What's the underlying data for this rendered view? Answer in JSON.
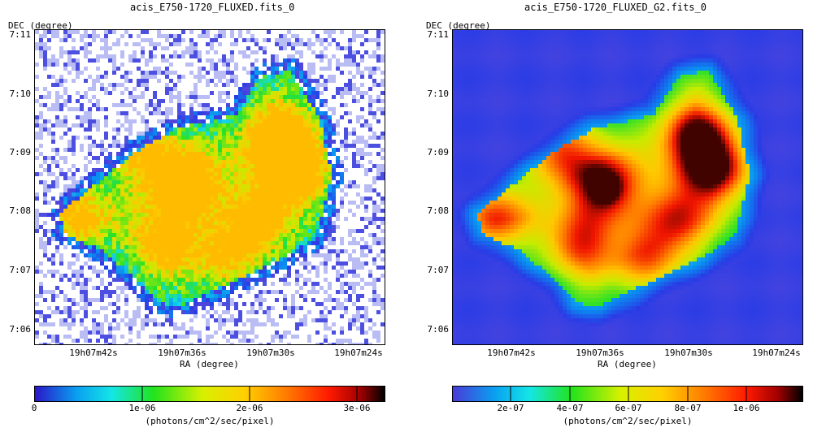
{
  "panels": [
    {
      "title": "acis_E750-1720_FLUXED.fits_0",
      "dec_axis_label": "DEC (degree)",
      "ra_axis_label": "RA (degree)",
      "dec_ticks": [
        "7:11",
        "7:10",
        "7:09",
        "7:08",
        "7:07",
        "7:06"
      ],
      "ra_ticks": [
        "19h07m42s",
        "19h07m36s",
        "19h07m30s",
        "19h07m24s"
      ],
      "colorbar_ticks": [
        "0",
        "1e-06",
        "2e-06",
        "3e-06"
      ],
      "colorbar_unit": "(photons/cm^2/sec/pixel)",
      "style": "noisy"
    },
    {
      "title": "acis_E750-1720_FLUXED_G2.fits_0",
      "dec_axis_label": "DEC (degree)",
      "ra_axis_label": "RA (degree)",
      "dec_ticks": [
        "7:11",
        "7:10",
        "7:09",
        "7:08",
        "7:07",
        "7:06"
      ],
      "ra_ticks": [
        "19h07m42s",
        "19h07m36s",
        "19h07m30s",
        "19h07m24s"
      ],
      "colorbar_ticks": [
        "2e-07",
        "4e-07",
        "6e-07",
        "8e-07",
        "1e-06"
      ],
      "colorbar_unit": "(photons/cm^2/sec/pixel)",
      "style": "smooth"
    }
  ],
  "colormap": [
    "#ffffff",
    "#3b3bd6",
    "#0aa0f0",
    "#14e6e6",
    "#22e31c",
    "#d8f000",
    "#ffd000",
    "#ff7a00",
    "#ff1a00",
    "#000000"
  ]
}
